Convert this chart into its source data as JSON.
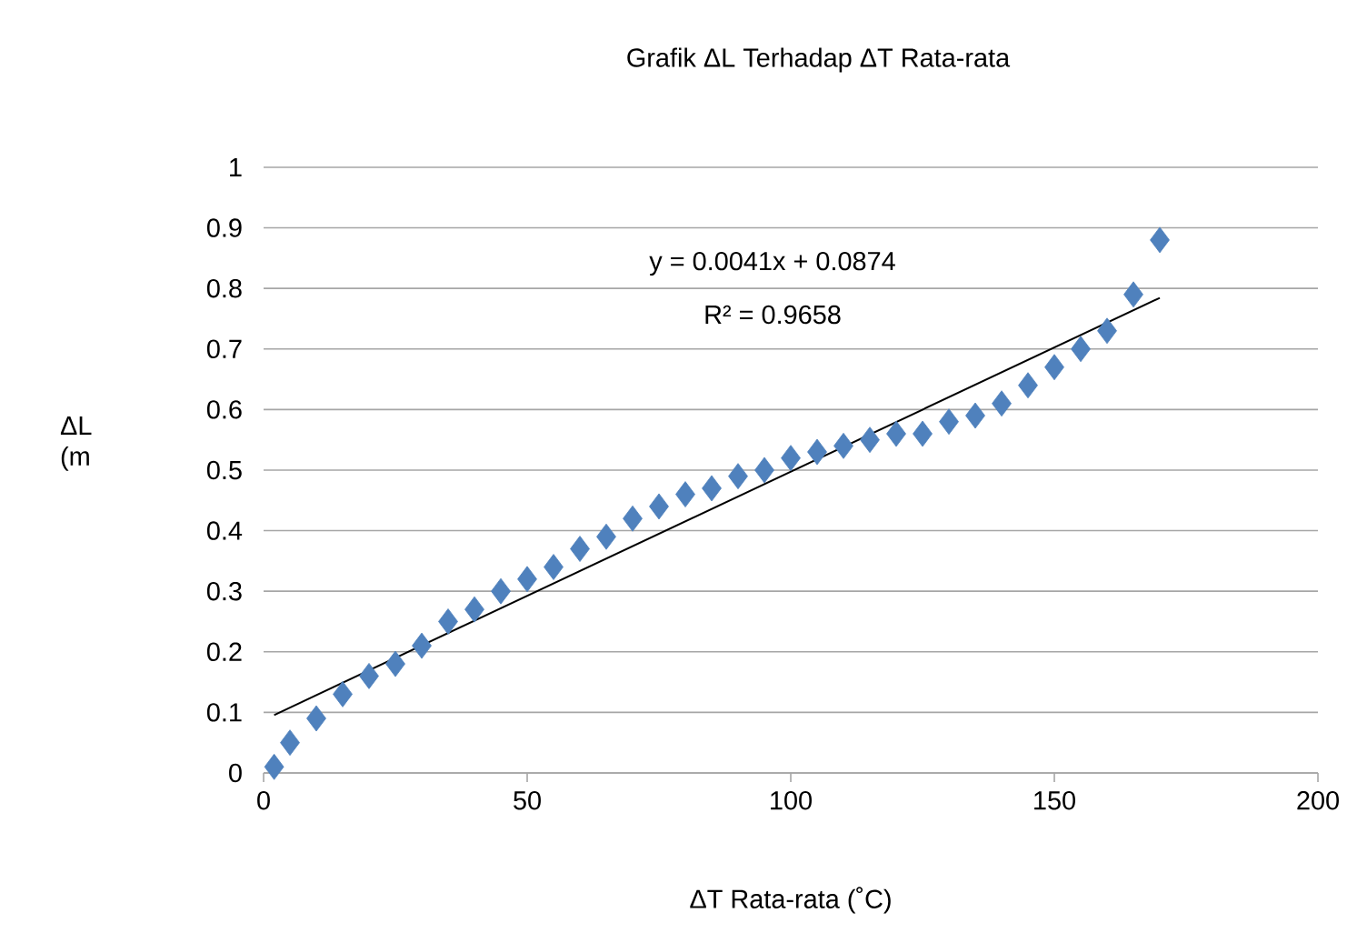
{
  "chart_data": {
    "type": "scatter",
    "title": "Grafik ΔL Terhadap ΔT Rata-rata",
    "xlabel": "ΔT Rata-rata (˚C)",
    "ylabel": "ΔL (m",
    "xlim": [
      0,
      200
    ],
    "xticks": [
      0,
      50,
      100,
      150,
      200
    ],
    "ylim": [
      0,
      1
    ],
    "yticks": [
      0,
      0.1,
      0.2,
      0.3,
      0.4,
      0.5,
      0.6,
      0.7,
      0.8,
      0.9,
      1
    ],
    "grid": "y",
    "marker": "diamond",
    "annotations": [
      "y = 0.0041x + 0.0874",
      "R² = 0.9658"
    ],
    "series": [
      {
        "color": "#4f81bd",
        "x": [
          2,
          5,
          10,
          15,
          20,
          25,
          30,
          35,
          40,
          45,
          50,
          55,
          60,
          65,
          70,
          75,
          80,
          85,
          90,
          95,
          100,
          105,
          110,
          115,
          120,
          125,
          130,
          135,
          140,
          145,
          150,
          155,
          160,
          165,
          170
        ],
        "values": [
          0.01,
          0.05,
          0.09,
          0.13,
          0.16,
          0.18,
          0.21,
          0.25,
          0.27,
          0.3,
          0.32,
          0.34,
          0.37,
          0.39,
          0.42,
          0.44,
          0.46,
          0.47,
          0.49,
          0.5,
          0.52,
          0.53,
          0.54,
          0.55,
          0.56,
          0.56,
          0.58,
          0.59,
          0.61,
          0.64,
          0.67,
          0.7,
          0.73,
          0.79,
          0.88
        ]
      },
      {
        "type": "line",
        "color": "#000000",
        "marker": "none",
        "x": [
          2,
          170
        ],
        "values": [
          0.0956,
          0.7844
        ]
      }
    ]
  }
}
